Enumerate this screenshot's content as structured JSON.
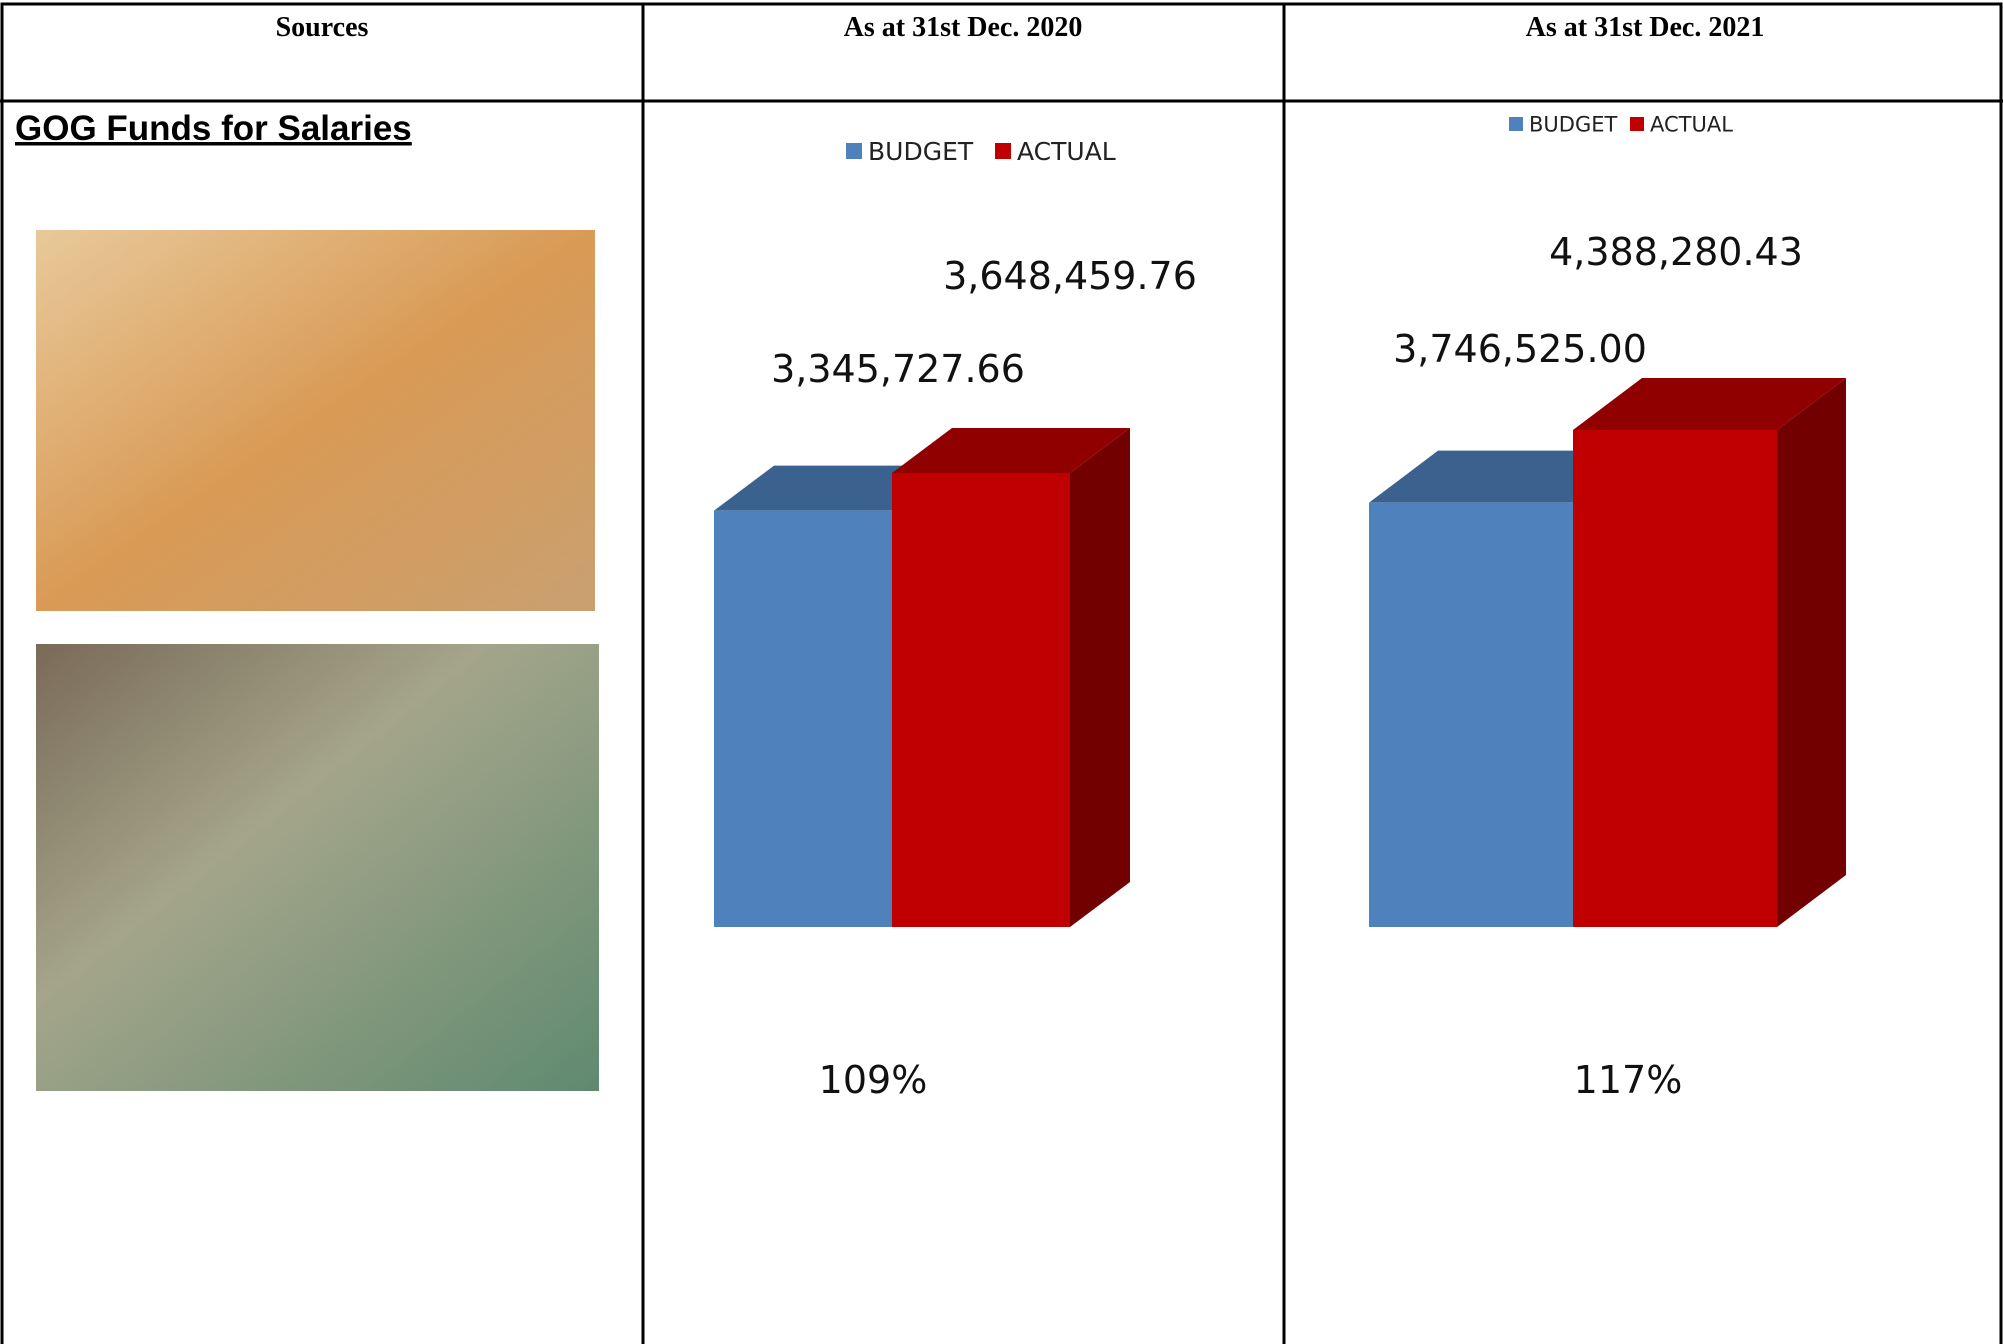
{
  "table": {
    "headers": [
      "Sources",
      "As at 31st Dec. 2020",
      "As at 31st Dec. 2021"
    ],
    "row_label": "GOG Funds for Salaries"
  },
  "chart_data": [
    {
      "type": "bar3d",
      "legend": "top",
      "series": [
        {
          "name": "BUDGET",
          "color": "#4f81bd",
          "values": [
            3345727.66
          ],
          "value_labels": [
            "3,345,727.66"
          ]
        },
        {
          "name": "ACTUAL",
          "color": "#c00000",
          "values": [
            3648459.76
          ],
          "value_labels": [
            "3,648,459.76"
          ]
        }
      ],
      "annotation": "109%"
    },
    {
      "type": "bar3d",
      "legend": "top",
      "series": [
        {
          "name": "BUDGET",
          "color": "#4f81bd",
          "values": [
            3746525.0
          ],
          "value_labels": [
            "3,746,525.00"
          ]
        },
        {
          "name": "ACTUAL",
          "color": "#c00000",
          "values": [
            4388280.43
          ],
          "value_labels": [
            "4,388,280.43"
          ]
        }
      ],
      "annotation": "117%"
    }
  ]
}
